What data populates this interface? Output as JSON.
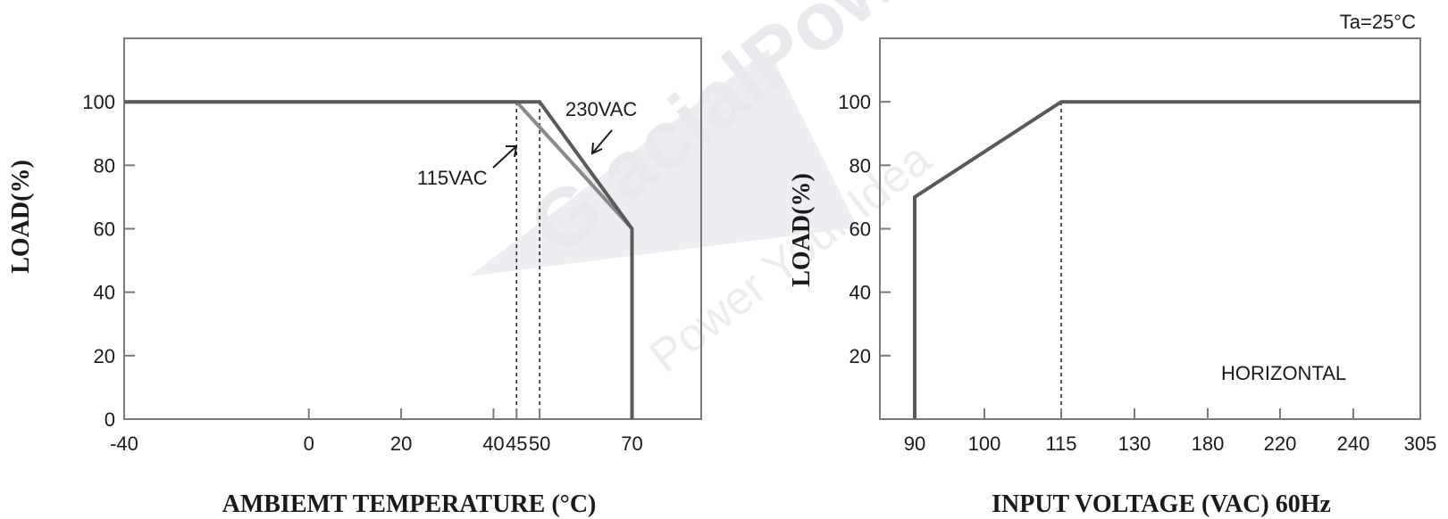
{
  "watermark": {
    "brand": "GlacialPower",
    "tagline": "Power Your Idea"
  },
  "condition_note": "Ta=25°C",
  "chart_data": [
    {
      "type": "line",
      "title": "",
      "xlabel": "AMBIEMT TEMPERATURE (°C)",
      "ylabel": "LOAD(%)",
      "x_ticks": [
        "-40",
        "0",
        "20",
        "40",
        "45",
        "50",
        "70"
      ],
      "y_ticks": [
        "0",
        "20",
        "40",
        "60",
        "80",
        "100"
      ],
      "xlim": [
        -40,
        85
      ],
      "ylim": [
        0,
        120
      ],
      "grid": false,
      "series": [
        {
          "name": "115VAC",
          "x": [
            -40,
            45,
            70,
            70
          ],
          "y": [
            100,
            100,
            60,
            0
          ],
          "color": "#8a8a8a"
        },
        {
          "name": "230VAC",
          "x": [
            -40,
            50,
            70,
            70
          ],
          "y": [
            100,
            100,
            60,
            0
          ],
          "color": "#5a5a5a"
        }
      ],
      "reference_lines_x": [
        45,
        50
      ],
      "annotations": [
        "230VAC",
        "115VAC"
      ]
    },
    {
      "type": "line",
      "title": "",
      "xlabel": "INPUT VOLTAGE (VAC) 60Hz",
      "ylabel": "LOAD(%)",
      "x_ticks": [
        "90",
        "100",
        "115",
        "130",
        "180",
        "220",
        "240",
        "305"
      ],
      "y_ticks": [
        "20",
        "40",
        "60",
        "80",
        "100"
      ],
      "ylim": [
        0,
        120
      ],
      "grid": false,
      "series": [
        {
          "name": "",
          "x": [
            90,
            90,
            115,
            305
          ],
          "y": [
            0,
            70,
            100,
            100
          ],
          "color": "#5a5a5a"
        }
      ],
      "reference_lines_x": [
        115
      ],
      "annotations": [
        "HORIZONTAL"
      ]
    }
  ]
}
